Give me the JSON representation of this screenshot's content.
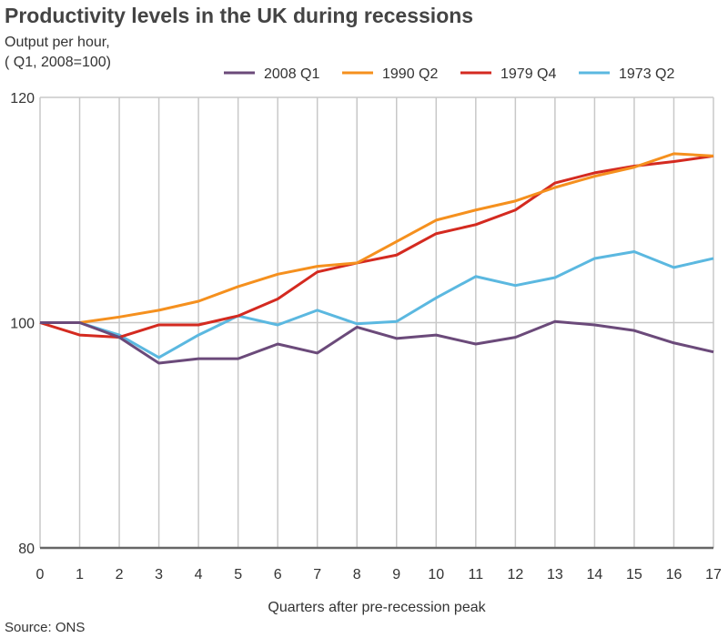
{
  "chart_data": {
    "type": "line",
    "title": "Productivity levels in the UK during recessions",
    "ylabel_lines": [
      "Output per hour,",
      "( Q1, 2008=100)"
    ],
    "xlabel": "Quarters after pre-recession peak",
    "source": "Source: ONS",
    "x": [
      0,
      1,
      2,
      3,
      4,
      5,
      6,
      7,
      8,
      9,
      10,
      11,
      12,
      13,
      14,
      15,
      16,
      17
    ],
    "xlim": [
      0,
      17
    ],
    "ylim": [
      80,
      120
    ],
    "yticks": [
      80,
      100,
      120
    ],
    "grid": true,
    "legend_position": "top",
    "series": [
      {
        "name": "2008 Q1",
        "color": "#6b4a7a",
        "values": [
          100,
          100,
          98.7,
          96.4,
          96.8,
          96.8,
          98.1,
          97.3,
          99.6,
          98.6,
          98.9,
          98.1,
          98.7,
          100.1,
          99.8,
          99.3,
          98.2,
          97.4
        ]
      },
      {
        "name": "1990 Q2",
        "color": "#f5901e",
        "values": [
          100,
          100,
          100.5,
          101.1,
          101.9,
          103.2,
          104.3,
          105.0,
          105.3,
          107.2,
          109.1,
          110.0,
          110.8,
          112.0,
          113.0,
          113.8,
          115.0,
          114.8
        ]
      },
      {
        "name": "1979 Q4",
        "color": "#d42a20",
        "values": [
          100,
          98.9,
          98.7,
          99.8,
          99.8,
          100.6,
          102.1,
          104.5,
          105.3,
          106.0,
          107.9,
          108.7,
          110.0,
          112.4,
          113.3,
          113.9,
          114.3,
          114.8
        ]
      },
      {
        "name": "1973 Q2",
        "color": "#5bb8e0",
        "values": [
          100,
          100,
          98.9,
          96.9,
          98.9,
          100.6,
          99.8,
          101.1,
          99.9,
          100.1,
          102.2,
          104.1,
          103.3,
          104.0,
          105.7,
          106.3,
          104.9,
          105.7
        ]
      }
    ]
  }
}
